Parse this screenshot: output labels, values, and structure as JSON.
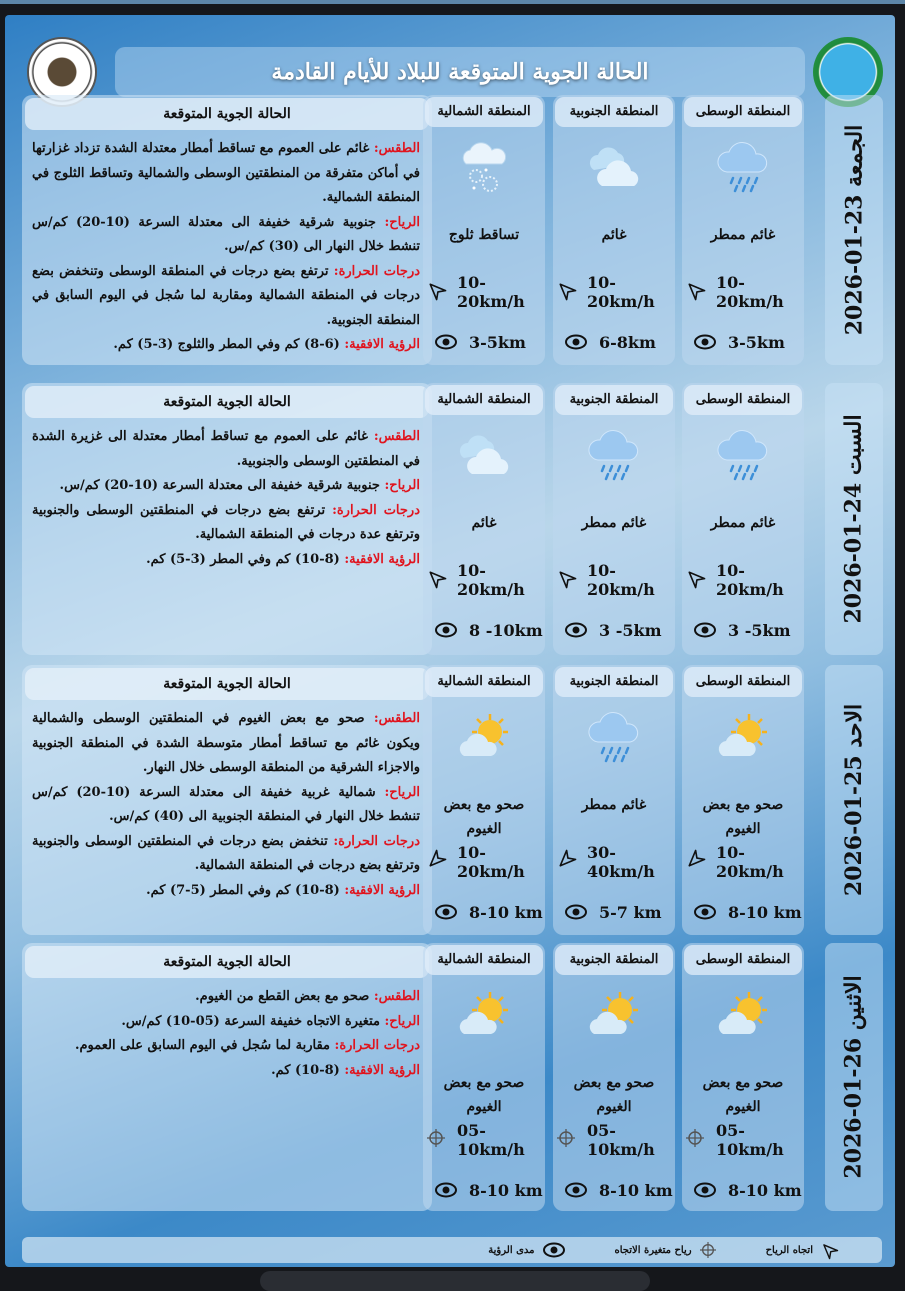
{
  "header": {
    "title": "الحالة الجوية المتوقعة للبلاد للأيام القادمة",
    "logo_left": "WEATHER FORECASTING DEPT",
    "logo_right": "logo"
  },
  "panel_title": "الحالة الجوية المتوقعة",
  "region_names": [
    "المنطقة الوسطى",
    "المنطقة الجنوبية",
    "المنطقة الشمالية"
  ],
  "colors": {
    "label_red": "#e0141e",
    "background_blue": "#3c89c8"
  },
  "days": [
    {
      "date": "الجمعة 23-01-2026",
      "lines": [
        {
          "label": "الطقس:",
          "text": " غائم على العموم مع تساقط أمطار معتدلة الشدة تزداد غزارتها في أماكن متفرقة من المنطقتين الوسطى والشمالية وتساقط الثلوج في المنطقة الشمالية."
        },
        {
          "label": "الرياح:",
          "text": " جنوبية شرقية خفيفة الى معتدلة السرعة (10-20) كم/س تنشط خلال النهار الى (30) كم/س."
        },
        {
          "label": "درجات الحرارة:",
          "text": " ترتفع بضع درجات في المنطقة الوسطى وتنخفض بضع درجات في المنطقة الشمالية ومقاربة لما سُجل في اليوم السابق في المنطقة الجنوبية."
        },
        {
          "label": "الرؤية الافقية:",
          "text": " (6-8) كم وفي المطر والثلوج (3-5) كم."
        }
      ],
      "regions": [
        {
          "condition": "غائم ممطر",
          "icon": "cloud-rain-icon",
          "wind": "10-20km/h",
          "wind_icon": "wind-direction-icon",
          "wind_dir_deg": -45,
          "visibility": "3-5km"
        },
        {
          "condition": "غائم",
          "icon": "cloud-icon",
          "wind": "10-20km/h",
          "wind_icon": "wind-direction-icon",
          "wind_dir_deg": -45,
          "visibility": "6-8km"
        },
        {
          "condition": "تساقط ثلوج",
          "icon": "cloud-snow-icon",
          "wind": "10-20km/h",
          "wind_icon": "wind-direction-icon",
          "wind_dir_deg": -45,
          "visibility": "3-5km"
        }
      ]
    },
    {
      "date": "السبت 24-01-2026",
      "lines": [
        {
          "label": "الطقس:",
          "text": " غائم على العموم مع تساقط أمطار معتدلة الى غزيرة الشدة في المنطقتين الوسطى والجنوبية."
        },
        {
          "label": "الرياح:",
          "text": " جنوبية شرقية خفيفة الى معتدلة السرعة (10-20) كم/س."
        },
        {
          "label": "درجات الحرارة:",
          "text": " ترتفع بضع درجات في المنطقتين الوسطى والجنوبية وترتفع عدة درجات في المنطقة الشمالية."
        },
        {
          "label": "الرؤية الافقية:",
          "text": " (8-10) كم وفي المطر (3-5) كم."
        }
      ],
      "regions": [
        {
          "condition": "غائم ممطر",
          "icon": "cloud-rain-icon",
          "wind": "10-20km/h",
          "wind_icon": "wind-direction-icon",
          "wind_dir_deg": -45,
          "visibility": "3 -5km"
        },
        {
          "condition": "غائم ممطر",
          "icon": "cloud-rain-icon",
          "wind": "10-20km/h",
          "wind_icon": "wind-direction-icon",
          "wind_dir_deg": -45,
          "visibility": "3 -5km"
        },
        {
          "condition": "غائم",
          "icon": "cloud-icon",
          "wind": "10-20km/h",
          "wind_icon": "wind-direction-icon",
          "wind_dir_deg": -45,
          "visibility": "8 -10km"
        }
      ]
    },
    {
      "date": "الاحد 25-01-2026",
      "lines": [
        {
          "label": "الطقس:",
          "text": " صحو مع بعض الغيوم في المنطقتين الوسطى والشمالية ويكون غائم مع تساقط أمطار متوسطة الشدة في المنطقة الجنوبية والاجزاء الشرقية من المنطقة الوسطى خلال النهار."
        },
        {
          "label": "الرياح:",
          "text": " شمالية غربية خفيفة الى معتدلة السرعة (10-20) كم/س تنشط خلال النهار في المنطقة الجنوبية الى (40) كم/س."
        },
        {
          "label": "درجات الحرارة:",
          "text": " تنخفض بضع درجات في المنطقتين الوسطى والجنوبية وترتفع بضع درجات في المنطقة الشمالية."
        },
        {
          "label": "الرؤية الافقية:",
          "text": " (8-10) كم وفي المطر (5-7) كم."
        }
      ],
      "regions": [
        {
          "condition": "صحو مع بعض الغيوم",
          "icon": "partly-sunny-icon",
          "wind": "10-20km/h",
          "wind_icon": "wind-direction-icon",
          "wind_dir_deg": -135,
          "visibility": "8-10 km"
        },
        {
          "condition": "غائم ممطر",
          "icon": "cloud-rain-icon",
          "wind": "30-40km/h",
          "wind_icon": "wind-direction-icon",
          "wind_dir_deg": -135,
          "visibility": "5-7 km"
        },
        {
          "condition": "صحو مع بعض الغيوم",
          "icon": "partly-sunny-icon",
          "wind": "10-20km/h",
          "wind_icon": "wind-direction-icon",
          "wind_dir_deg": -135,
          "visibility": "8-10 km"
        }
      ]
    },
    {
      "date": "الاثنين 26-01-2026",
      "lines": [
        {
          "label": "الطقس:",
          "text": " صحو مع بعض القطع من الغيوم."
        },
        {
          "label": "الرياح:",
          "text": " متغيرة الاتجاه خفيفة السرعة (05-10) كم/س."
        },
        {
          "label": "درجات الحرارة:",
          "text": " مقاربة لما سُجل في اليوم السابق على العموم."
        },
        {
          "label": "الرؤية الافقية:",
          "text": " (8-10) كم."
        }
      ],
      "regions": [
        {
          "condition": "صحو مع بعض الغيوم",
          "icon": "partly-sunny-icon",
          "wind": "05-10km/h",
          "wind_icon": "variable-wind-icon",
          "wind_dir_deg": 0,
          "visibility": "8-10 km"
        },
        {
          "condition": "صحو مع بعض الغيوم",
          "icon": "partly-sunny-icon",
          "wind": "05-10km/h",
          "wind_icon": "variable-wind-icon",
          "wind_dir_deg": 0,
          "visibility": "8-10 km"
        },
        {
          "condition": "صحو مع بعض الغيوم",
          "icon": "partly-sunny-icon",
          "wind": "05-10km/h",
          "wind_icon": "variable-wind-icon",
          "wind_dir_deg": 0,
          "visibility": "8-10 km"
        }
      ]
    }
  ],
  "legend": {
    "wind_direction": "اتجاه الرياح",
    "variable_wind": "رياح متغيرة الاتجاه",
    "visibility": "مدى الرؤية"
  }
}
